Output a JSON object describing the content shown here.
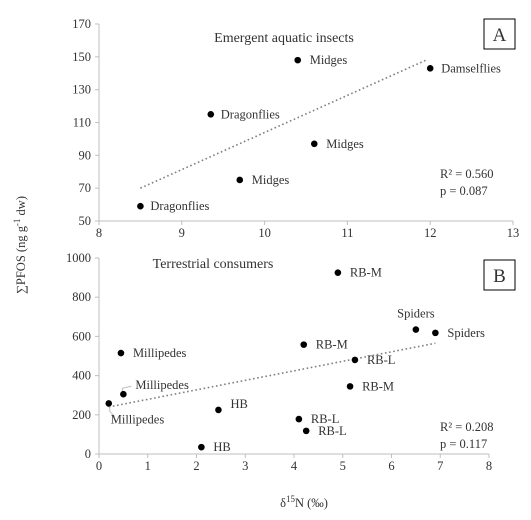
{
  "chart_data": [
    {
      "panel_id": "A",
      "type": "scatter",
      "title": "Emergent aquatic insects",
      "xlim": [
        8,
        13
      ],
      "xticks": [
        8,
        9,
        10,
        11,
        12,
        13
      ],
      "ylim": [
        50,
        170
      ],
      "yticks": [
        50,
        70,
        90,
        110,
        130,
        150,
        170
      ],
      "grid": false,
      "points": [
        {
          "x": 8.5,
          "y": 59,
          "label": "Dragonflies"
        },
        {
          "x": 9.35,
          "y": 115,
          "label": "Dragonflies"
        },
        {
          "x": 9.7,
          "y": 75,
          "label": "Midges"
        },
        {
          "x": 10.4,
          "y": 148,
          "label": "Midges"
        },
        {
          "x": 10.6,
          "y": 97,
          "label": "Midges"
        },
        {
          "x": 12.0,
          "y": 143,
          "label": "Damselflies"
        }
      ],
      "trendline": {
        "style": "dotted",
        "x1": 8.5,
        "y1": 70,
        "x2": 11.95,
        "y2": 148
      },
      "stats": {
        "r2": "R² = 0.560",
        "p": "p = 0.087"
      }
    },
    {
      "panel_id": "B",
      "type": "scatter",
      "title": "Terrestrial consumers",
      "xlim": [
        0,
        8
      ],
      "xticks": [
        0,
        1,
        2,
        3,
        4,
        5,
        6,
        7,
        8
      ],
      "ylim": [
        0,
        1000
      ],
      "yticks": [
        0,
        200,
        400,
        600,
        800,
        1000
      ],
      "grid": false,
      "points": [
        {
          "x": 0.2,
          "y": 258,
          "label": "Millipedes"
        },
        {
          "x": 0.5,
          "y": 305,
          "label": "Millipedes"
        },
        {
          "x": 0.45,
          "y": 515,
          "label": "Millipedes"
        },
        {
          "x": 2.1,
          "y": 35,
          "label": "HB"
        },
        {
          "x": 2.45,
          "y": 225,
          "label": "HB"
        },
        {
          "x": 4.1,
          "y": 178,
          "label": "RB-L"
        },
        {
          "x": 4.25,
          "y": 118,
          "label": "RB-L"
        },
        {
          "x": 4.2,
          "y": 558,
          "label": "RB-M"
        },
        {
          "x": 4.9,
          "y": 925,
          "label": "RB-M"
        },
        {
          "x": 5.15,
          "y": 345,
          "label": "RB-M"
        },
        {
          "x": 5.25,
          "y": 480,
          "label": "RB-L"
        },
        {
          "x": 6.5,
          "y": 635,
          "label": "Spiders"
        },
        {
          "x": 6.9,
          "y": 618,
          "label": "Spiders"
        }
      ],
      "trendline": {
        "style": "dotted",
        "x1": 0.2,
        "y1": 240,
        "x2": 6.9,
        "y2": 565
      },
      "stats": {
        "r2": "R² = 0.208",
        "p": "p = 0.117"
      }
    }
  ],
  "ylabel": {
    "base": "∑PFOS (ng g",
    "sup": "-1",
    "tail": " dw)"
  },
  "xlabel": {
    "pre": "δ",
    "sup": "15",
    "post": "N (‰)"
  },
  "colors": {
    "axis": "#bfbfbf",
    "point": "#000000",
    "trend": "#7f7f7f",
    "text": "#333333"
  }
}
